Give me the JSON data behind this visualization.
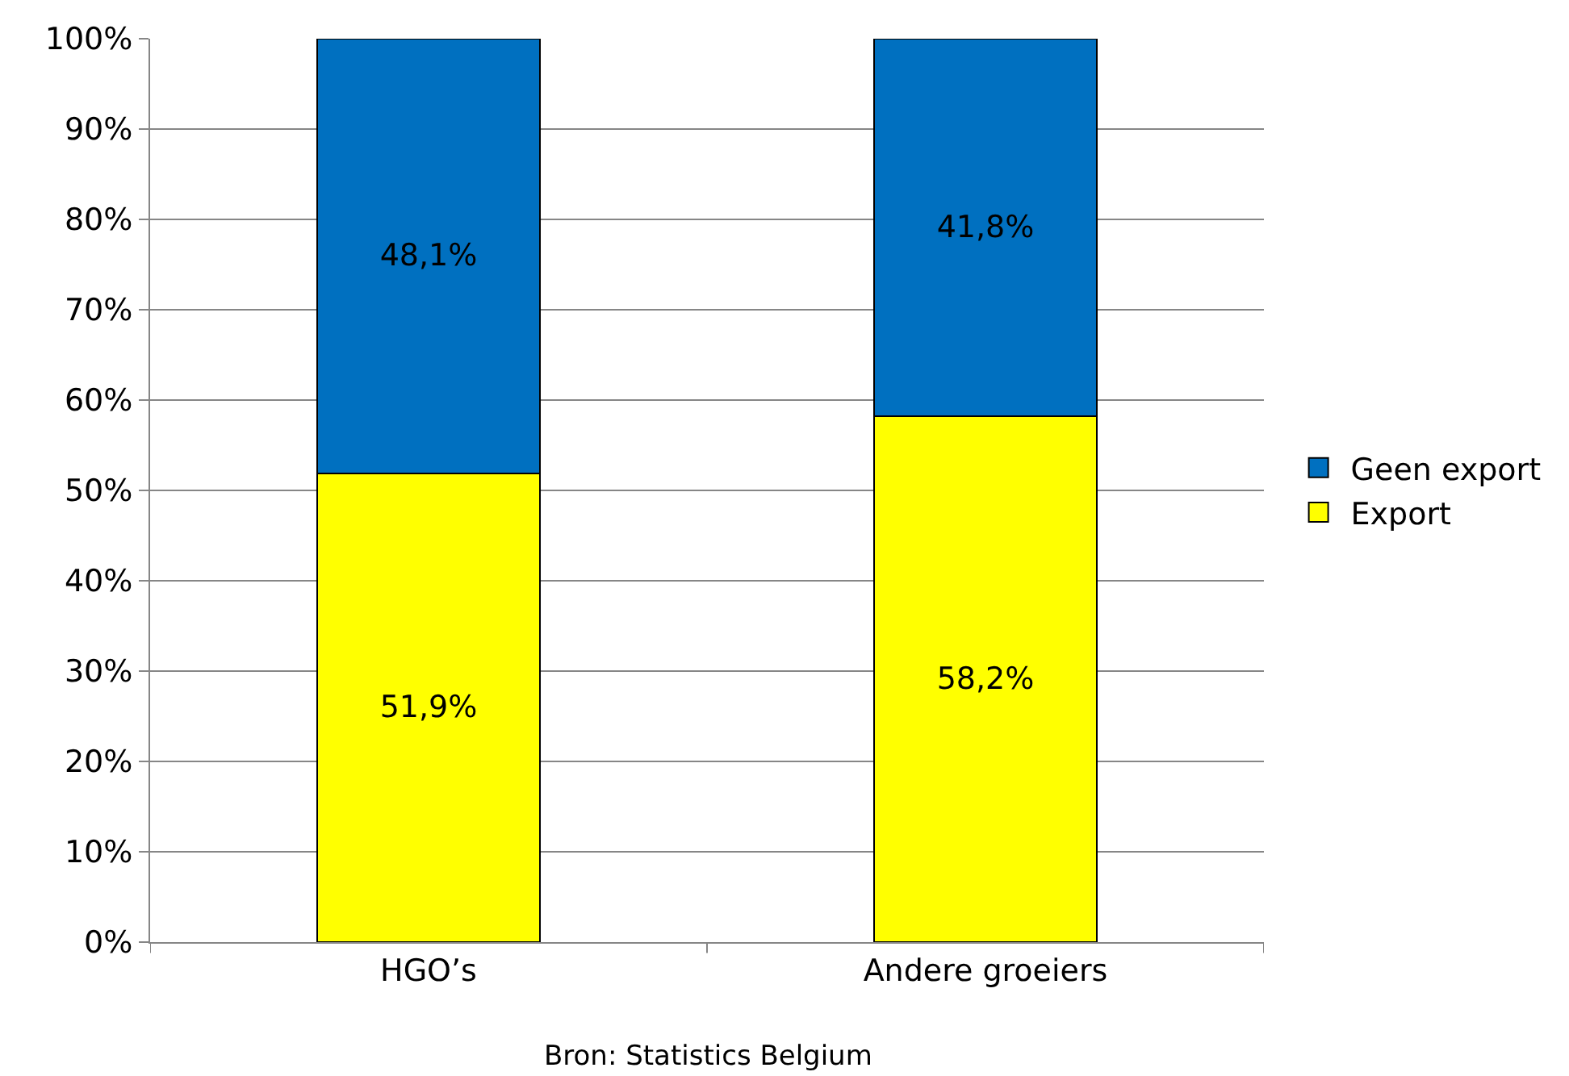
{
  "chart_data": {
    "type": "bar",
    "stacked": true,
    "categories": [
      "HGO’s",
      "Andere groeiers"
    ],
    "series": [
      {
        "name": "Export",
        "color": "#ffff00",
        "values": [
          51.9,
          58.2
        ],
        "value_labels": [
          "51,9%",
          "58,2%"
        ]
      },
      {
        "name": "Geen export",
        "color": "#0070c0",
        "values": [
          48.1,
          41.8
        ],
        "value_labels": [
          "48,1%",
          "41,8%"
        ]
      }
    ],
    "ylim": [
      0,
      100
    ],
    "yticks": [
      {
        "value": 0,
        "label": "0%"
      },
      {
        "value": 10,
        "label": "10%"
      },
      {
        "value": 20,
        "label": "20%"
      },
      {
        "value": 30,
        "label": "30%"
      },
      {
        "value": 40,
        "label": "40%"
      },
      {
        "value": 50,
        "label": "50%"
      },
      {
        "value": 60,
        "label": "60%"
      },
      {
        "value": 70,
        "label": "70%"
      },
      {
        "value": 80,
        "label": "80%"
      },
      {
        "value": 90,
        "label": "90%"
      },
      {
        "value": 100,
        "label": "100%"
      }
    ],
    "grid": "y",
    "legend": "right",
    "annotations": [
      "Bron: Statistics Belgium"
    ]
  }
}
